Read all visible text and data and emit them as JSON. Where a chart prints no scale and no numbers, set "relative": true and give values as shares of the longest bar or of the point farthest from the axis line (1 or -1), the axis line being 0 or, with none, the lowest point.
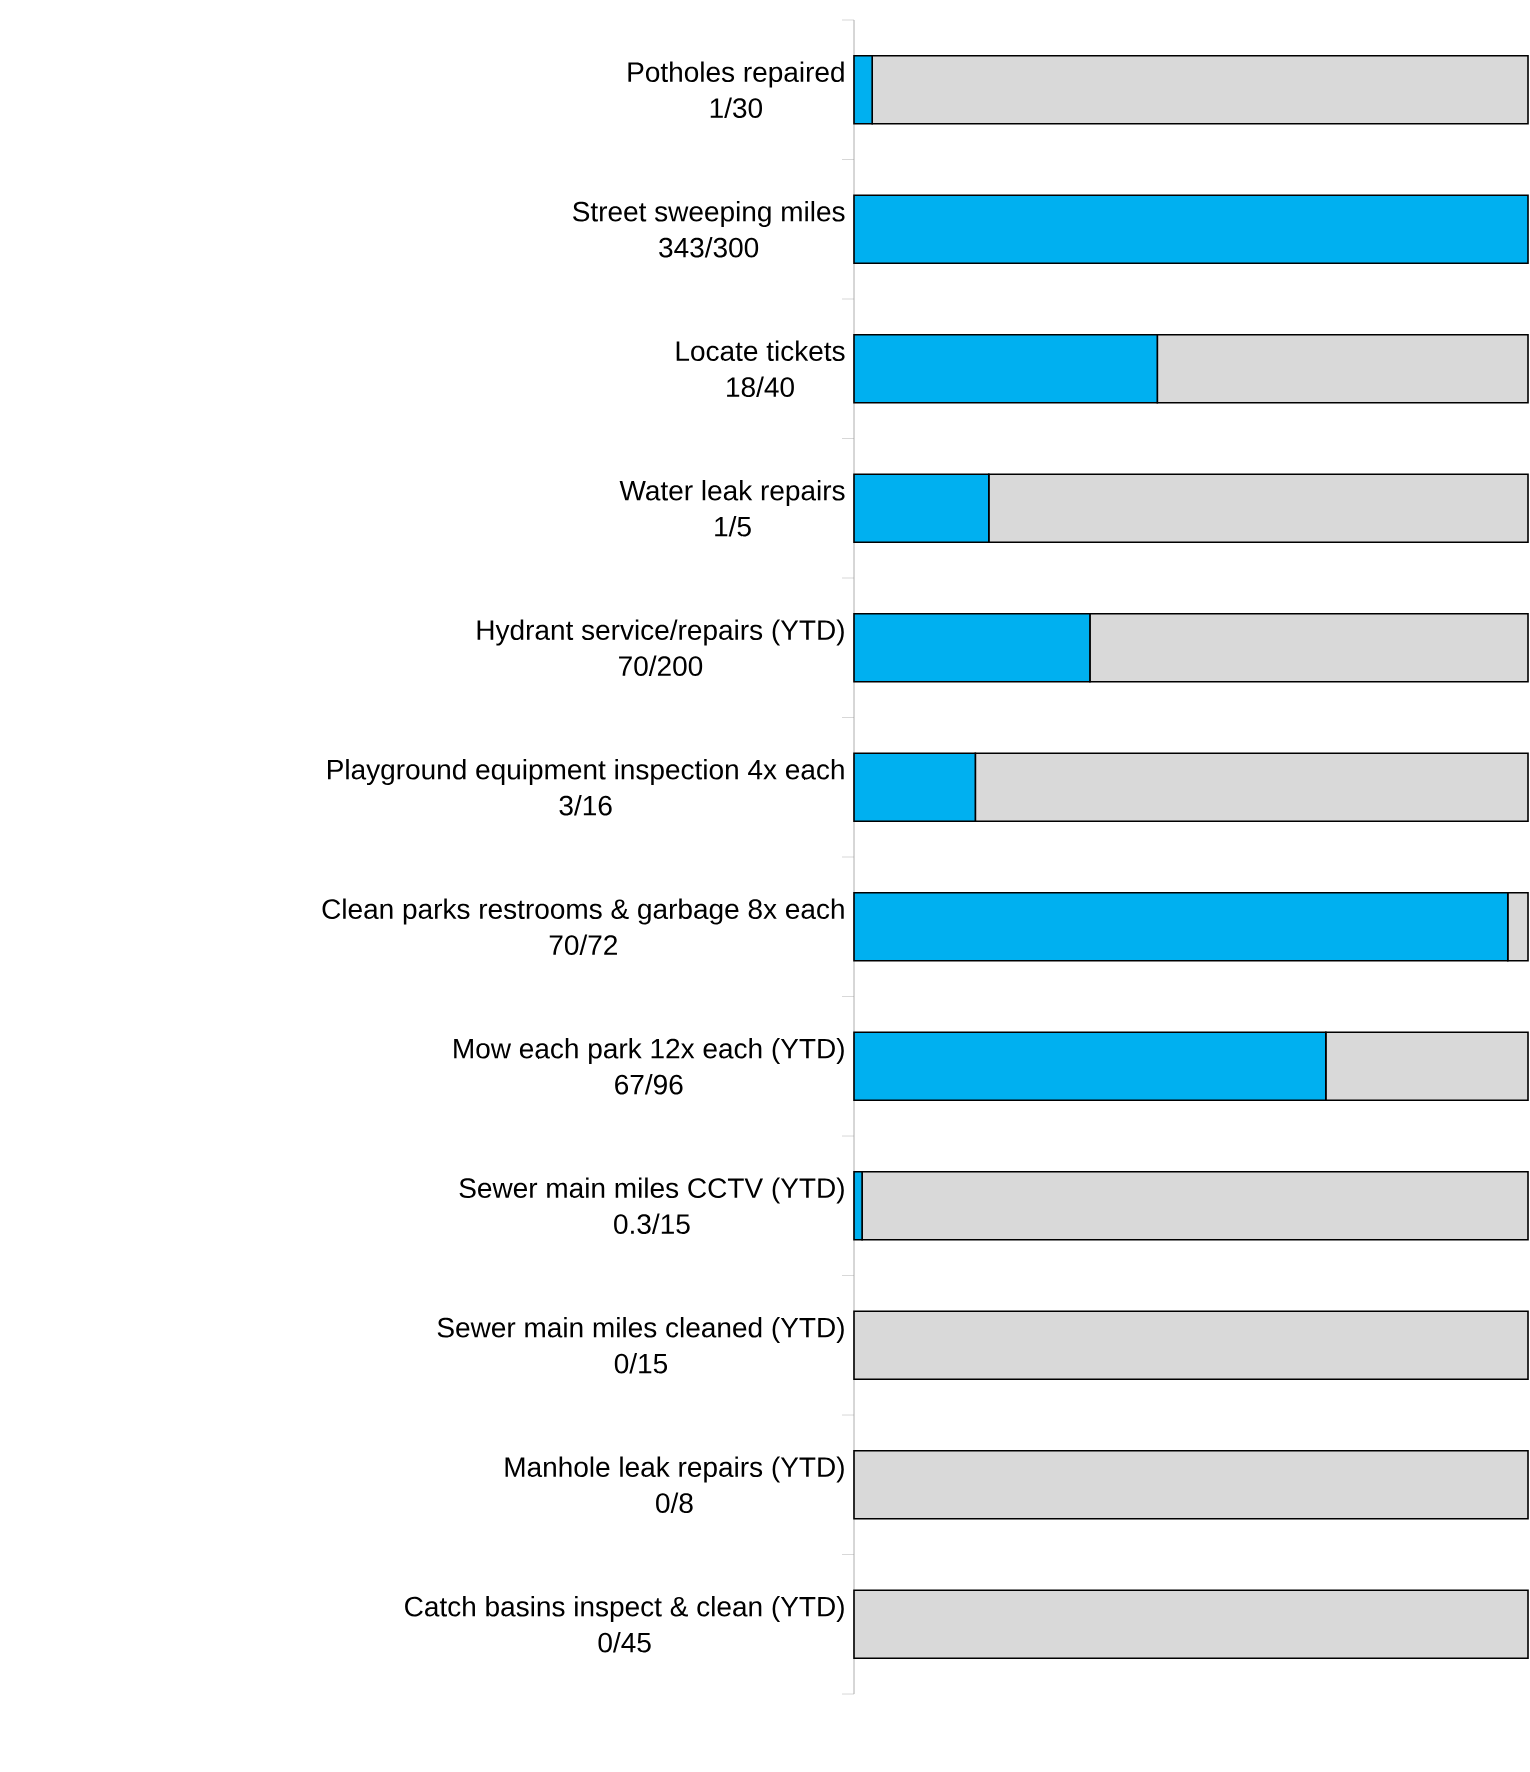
{
  "chart_data": {
    "type": "bar",
    "orientation": "horizontal",
    "stacked": true,
    "relative": true,
    "categories": [
      "Potholes repaired",
      "Street sweeping miles",
      "Locate tickets",
      "Water leak repairs",
      "Hydrant service/repairs (YTD)",
      "Playground equipment inspection 4x each",
      "Clean parks restrooms & garbage 8x each",
      "Mow each park 12x each (YTD)",
      "Sewer main miles CCTV (YTD)",
      "Sewer main miles cleaned (YTD)",
      "Manhole leak repairs (YTD)",
      "Catch basins inspect & clean (YTD)"
    ],
    "annotations": [
      "1/30",
      "343/300",
      "18/40",
      "1/5",
      "70/200",
      "3/16",
      "70/72",
      "67/96",
      "0.3/15",
      "0/15",
      "0/8",
      "0/45"
    ],
    "series": [
      {
        "color": "#00b0f0",
        "values": [
          0.027,
          1,
          0.45,
          0.2,
          0.35,
          0.18,
          0.97,
          0.7,
          0.012,
          0,
          0,
          0
        ]
      },
      {
        "color": "#d9d9d9",
        "values": [
          0.973,
          0,
          0.55,
          0.8,
          0.65,
          0.82,
          0.03,
          0.3,
          0.988,
          1,
          1,
          1
        ]
      }
    ]
  }
}
